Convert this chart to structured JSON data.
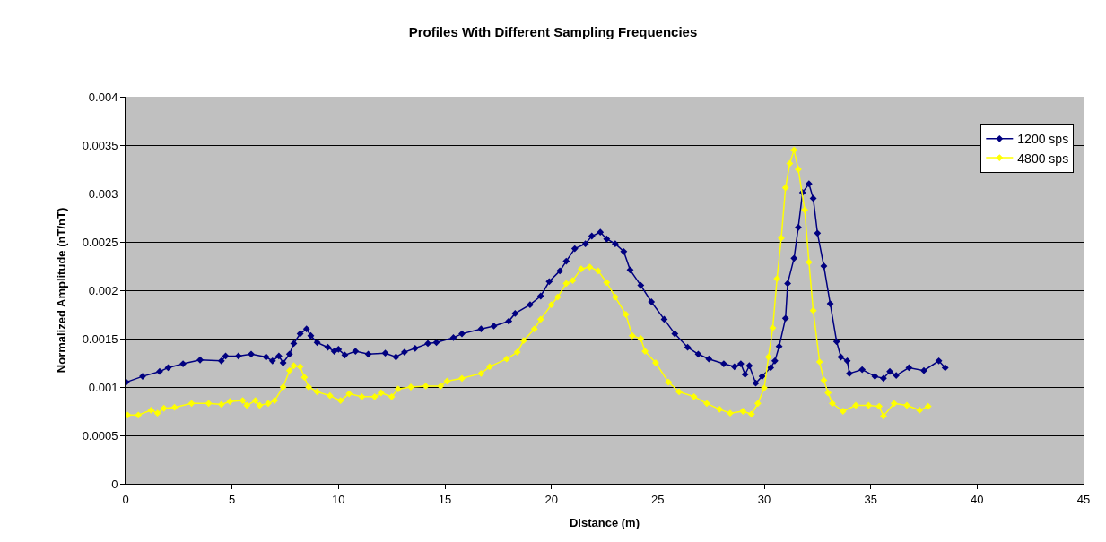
{
  "chart_data": {
    "type": "line",
    "title": "Profiles With Different Sampling Frequencies",
    "xlabel": "Distance (m)",
    "ylabel": "Normalized Amplitude (nT/nT)",
    "xlim": [
      0,
      45
    ],
    "xticks": [
      0,
      5,
      10,
      15,
      20,
      25,
      30,
      35,
      40,
      45
    ],
    "ylim": [
      0,
      0.004
    ],
    "yticks": [
      0,
      0.0005,
      0.001,
      0.0015,
      0.002,
      0.0025,
      0.003,
      0.0035,
      0.004
    ],
    "grid": "y",
    "legend": "top right",
    "marker": "diamond",
    "line_style": "solid",
    "series": [
      {
        "name": "1200 sps",
        "color": "#000080",
        "x": [
          0.03,
          0.8,
          1.6,
          2.0,
          2.7,
          3.5,
          4.5,
          4.7,
          5.3,
          5.9,
          6.6,
          6.9,
          7.2,
          7.4,
          7.7,
          7.9,
          8.2,
          8.5,
          8.7,
          9.0,
          9.5,
          9.8,
          10.0,
          10.3,
          10.8,
          11.4,
          12.2,
          12.7,
          13.1,
          13.6,
          14.2,
          14.6,
          15.4,
          15.8,
          16.7,
          17.3,
          18.0,
          18.3,
          19.0,
          19.5,
          19.9,
          20.4,
          20.7,
          21.1,
          21.6,
          21.9,
          22.3,
          22.6,
          23.0,
          23.4,
          23.7,
          24.2,
          24.7,
          25.3,
          25.8,
          26.4,
          26.9,
          27.4,
          28.1,
          28.6,
          28.9,
          29.1,
          29.3,
          29.6,
          29.9,
          30.3,
          30.5,
          30.7,
          31.0,
          31.1,
          31.4,
          31.6,
          31.8,
          32.1,
          32.3,
          32.5,
          32.8,
          33.1,
          33.4,
          33.6,
          33.9,
          34.0,
          34.6,
          35.2,
          35.6,
          35.9,
          36.2,
          36.8,
          37.5,
          38.2,
          38.5
        ],
        "values": [
          0.00105,
          0.00111,
          0.00116,
          0.0012,
          0.00124,
          0.00128,
          0.00127,
          0.00132,
          0.00132,
          0.00134,
          0.00131,
          0.00127,
          0.00132,
          0.00125,
          0.00134,
          0.00145,
          0.00155,
          0.0016,
          0.00153,
          0.00146,
          0.00141,
          0.00137,
          0.00139,
          0.00133,
          0.00137,
          0.00134,
          0.00135,
          0.00131,
          0.00136,
          0.0014,
          0.00145,
          0.00146,
          0.00151,
          0.00155,
          0.0016,
          0.00163,
          0.00168,
          0.00176,
          0.00185,
          0.00194,
          0.00209,
          0.0022,
          0.0023,
          0.00243,
          0.00248,
          0.00256,
          0.0026,
          0.00253,
          0.00248,
          0.0024,
          0.00221,
          0.00205,
          0.00188,
          0.0017,
          0.00155,
          0.00141,
          0.00134,
          0.00129,
          0.00124,
          0.00121,
          0.00124,
          0.00113,
          0.00122,
          0.00104,
          0.00111,
          0.0012,
          0.00127,
          0.00142,
          0.00171,
          0.00207,
          0.00233,
          0.00265,
          0.00301,
          0.0031,
          0.00295,
          0.00259,
          0.00225,
          0.00186,
          0.00147,
          0.00131,
          0.00127,
          0.00114,
          0.00118,
          0.00111,
          0.00109,
          0.00116,
          0.00112,
          0.0012,
          0.00117,
          0.00127,
          0.0012
        ]
      },
      {
        "name": "4800 sps",
        "color": "#ffff00",
        "x": [
          0.1,
          0.6,
          1.2,
          1.5,
          1.8,
          2.3,
          3.1,
          3.9,
          4.5,
          4.9,
          5.5,
          5.7,
          6.1,
          6.3,
          6.7,
          7.0,
          7.4,
          7.7,
          7.9,
          8.2,
          8.4,
          8.6,
          9.0,
          9.6,
          10.1,
          10.5,
          11.1,
          11.7,
          12.0,
          12.5,
          12.8,
          13.4,
          14.1,
          14.8,
          15.1,
          15.8,
          16.7,
          17.1,
          17.9,
          18.4,
          18.7,
          19.2,
          19.5,
          20.0,
          20.3,
          20.7,
          21.0,
          21.4,
          21.8,
          22.2,
          22.6,
          23.0,
          23.5,
          23.8,
          24.2,
          24.4,
          24.9,
          25.5,
          26.0,
          26.7,
          27.3,
          27.9,
          28.4,
          29.0,
          29.4,
          29.7,
          30.0,
          30.2,
          30.4,
          30.6,
          30.8,
          31.0,
          31.2,
          31.4,
          31.6,
          31.9,
          32.1,
          32.3,
          32.6,
          32.8,
          33.0,
          33.2,
          33.7,
          34.3,
          34.9,
          35.4,
          35.6,
          36.1,
          36.7,
          37.3,
          37.7
        ],
        "values": [
          0.00071,
          0.00071,
          0.00076,
          0.00073,
          0.00078,
          0.00079,
          0.00083,
          0.00083,
          0.00082,
          0.00085,
          0.00086,
          0.00081,
          0.00086,
          0.00081,
          0.00083,
          0.00086,
          0.001,
          0.00117,
          0.00122,
          0.00121,
          0.0011,
          0.001,
          0.00095,
          0.00091,
          0.00086,
          0.00093,
          0.0009,
          0.0009,
          0.00094,
          0.0009,
          0.00098,
          0.001,
          0.00101,
          0.00101,
          0.00106,
          0.00109,
          0.00114,
          0.00121,
          0.00129,
          0.00136,
          0.00148,
          0.0016,
          0.0017,
          0.00185,
          0.00193,
          0.00207,
          0.0021,
          0.00222,
          0.00224,
          0.0022,
          0.00208,
          0.00193,
          0.00175,
          0.00153,
          0.0015,
          0.00137,
          0.00125,
          0.00105,
          0.00095,
          0.0009,
          0.00083,
          0.00077,
          0.00073,
          0.00075,
          0.00072,
          0.00083,
          0.00099,
          0.00131,
          0.00161,
          0.00212,
          0.00254,
          0.00306,
          0.00331,
          0.00345,
          0.00325,
          0.00283,
          0.00229,
          0.00179,
          0.00126,
          0.00107,
          0.00094,
          0.00083,
          0.00075,
          0.00081,
          0.00081,
          0.0008,
          0.0007,
          0.00083,
          0.00081,
          0.00076,
          0.0008
        ]
      }
    ]
  }
}
